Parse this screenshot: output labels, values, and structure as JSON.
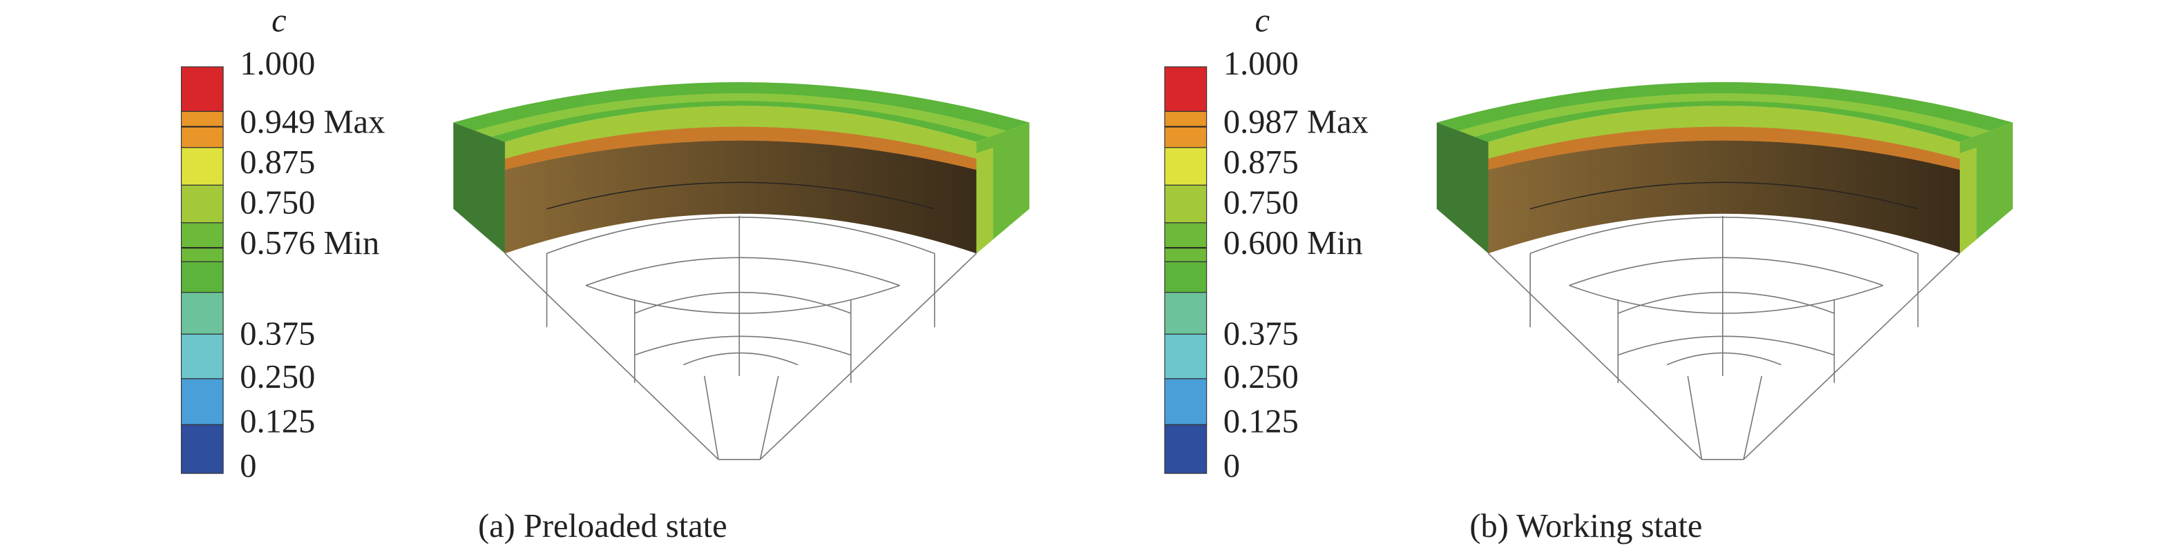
{
  "panels": [
    {
      "legend_title": "c",
      "legend_labels": [
        "1.000",
        "0.949 Max",
        "0.875",
        "0.750",
        "0.576 Min",
        "0.375",
        "0.250",
        "0.125",
        "0"
      ],
      "caption": "(a) Preloaded state"
    },
    {
      "legend_title": "c",
      "legend_labels": [
        "1.000",
        "0.987 Max",
        "0.875",
        "0.750",
        "0.600 Min",
        "0.375",
        "0.250",
        "0.125",
        "0"
      ],
      "caption": "(b) Working state"
    }
  ]
}
